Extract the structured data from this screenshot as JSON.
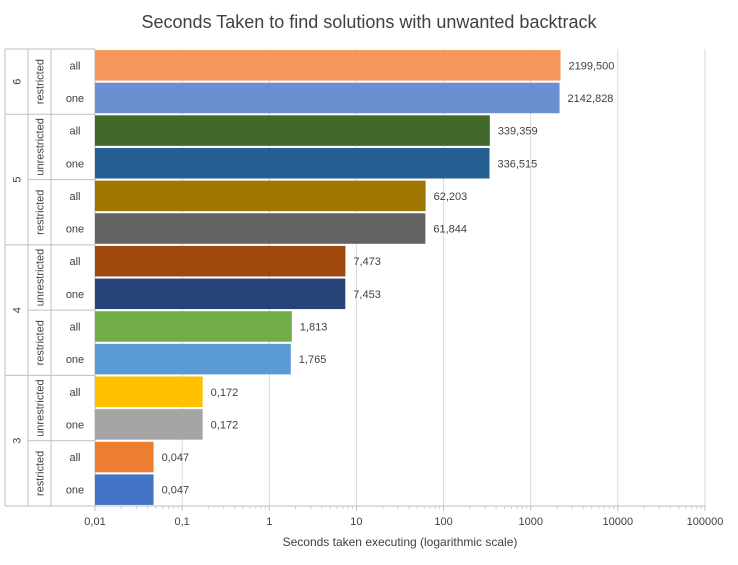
{
  "chart_data": {
    "type": "bar",
    "orientation": "horizontal",
    "title": "Seconds Taken to find solutions with unwanted backtrack",
    "xlabel": "Seconds taken executing (logarithmic scale)",
    "ylabel": "",
    "x_scale": "log",
    "xlim": [
      0.01,
      100000
    ],
    "x_ticks": [
      "0,01",
      "0,1",
      "1",
      "10",
      "100",
      "1000",
      "10000",
      "100000"
    ],
    "grid": true,
    "legend": "none",
    "categories": [
      {
        "n": "6",
        "mode": "restricted",
        "solutions": "all",
        "value": 2199.5,
        "label": "2199,500",
        "color": "#F4975B"
      },
      {
        "n": "6",
        "mode": "restricted",
        "solutions": "one",
        "value": 2142.828,
        "label": "2142,828",
        "color": "#6B8FD0"
      },
      {
        "n": "5",
        "mode": "unrestricted",
        "solutions": "all",
        "value": 339.359,
        "label": "339,359",
        "color": "#43682B"
      },
      {
        "n": "5",
        "mode": "unrestricted",
        "solutions": "one",
        "value": 336.515,
        "label": "336,515",
        "color": "#255E91"
      },
      {
        "n": "5",
        "mode": "restricted",
        "solutions": "all",
        "value": 62.203,
        "label": "62,203",
        "color": "#9E7600"
      },
      {
        "n": "5",
        "mode": "restricted",
        "solutions": "one",
        "value": 61.844,
        "label": "61,844",
        "color": "#636363"
      },
      {
        "n": "4",
        "mode": "unrestricted",
        "solutions": "all",
        "value": 7.473,
        "label": "7,473",
        "color": "#9E480E"
      },
      {
        "n": "4",
        "mode": "unrestricted",
        "solutions": "one",
        "value": 7.453,
        "label": "7,453",
        "color": "#264478"
      },
      {
        "n": "4",
        "mode": "restricted",
        "solutions": "all",
        "value": 1.813,
        "label": "1,813",
        "color": "#70AD47"
      },
      {
        "n": "4",
        "mode": "restricted",
        "solutions": "one",
        "value": 1.765,
        "label": "1,765",
        "color": "#5B9BD5"
      },
      {
        "n": "3",
        "mode": "unrestricted",
        "solutions": "all",
        "value": 0.172,
        "label": "0,172",
        "color": "#FFC000"
      },
      {
        "n": "3",
        "mode": "unrestricted",
        "solutions": "one",
        "value": 0.172,
        "label": "0,172",
        "color": "#A5A5A5"
      },
      {
        "n": "3",
        "mode": "restricted",
        "solutions": "all",
        "value": 0.047,
        "label": "0,047",
        "color": "#ED7D31"
      },
      {
        "n": "3",
        "mode": "restricted",
        "solutions": "one",
        "value": 0.047,
        "label": "0,047",
        "color": "#4472C4"
      }
    ]
  }
}
